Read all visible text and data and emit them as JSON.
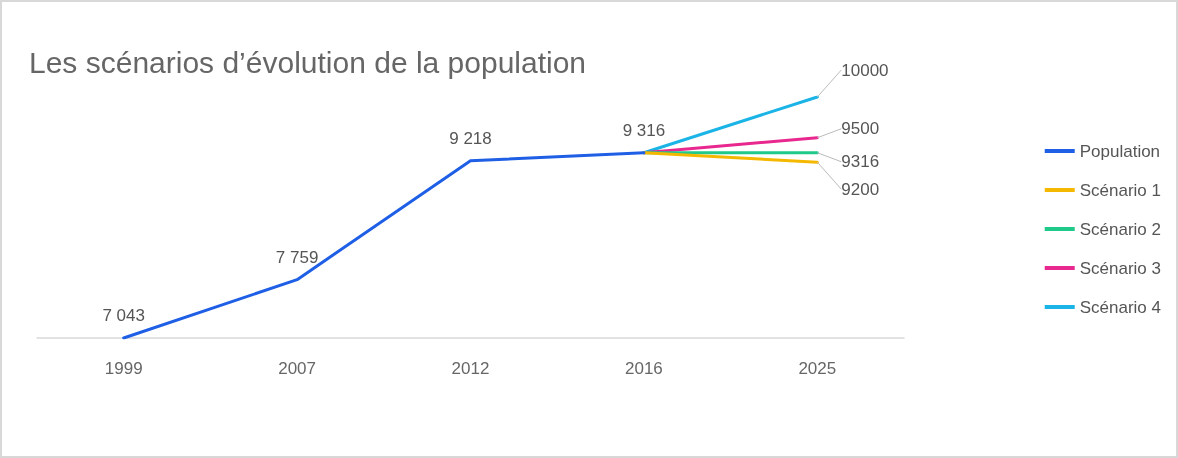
{
  "chart_data": {
    "type": "line",
    "title": "Les scénarios d’évolution de la population",
    "categories": [
      "1999",
      "2007",
      "2012",
      "2016",
      "2025"
    ],
    "series": [
      {
        "name": "Population",
        "color": "#1f5fe6",
        "values": [
          7043,
          7759,
          9218,
          9316,
          null
        ],
        "value_labels": [
          "7 043",
          "7 759",
          "9 218",
          "9 316",
          null
        ]
      },
      {
        "name": "Scénario 1",
        "color": "#f5b800",
        "values": [
          null,
          null,
          null,
          9316,
          9200
        ],
        "value_labels": [
          null,
          null,
          null,
          null,
          "9200"
        ]
      },
      {
        "name": "Scénario 2",
        "color": "#1ec98a",
        "values": [
          null,
          null,
          null,
          9316,
          9316
        ],
        "value_labels": [
          null,
          null,
          null,
          null,
          "9316"
        ]
      },
      {
        "name": "Scénario 3",
        "color": "#e8288f",
        "values": [
          null,
          null,
          null,
          9316,
          9500
        ],
        "value_labels": [
          null,
          null,
          null,
          null,
          "9500"
        ]
      },
      {
        "name": "Scénario 4",
        "color": "#1ab4e6",
        "values": [
          null,
          null,
          null,
          9316,
          10000
        ],
        "value_labels": [
          null,
          null,
          null,
          null,
          "10000"
        ]
      }
    ],
    "grid": false,
    "legend": "right",
    "marker": "none",
    "line_style": "solid"
  }
}
